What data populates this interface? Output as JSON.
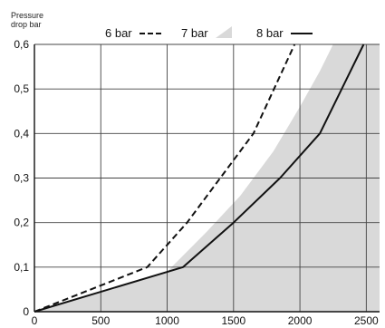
{
  "chart_data": {
    "type": "line",
    "title": "",
    "ylabel_lines": [
      "Pressure",
      "drop bar"
    ],
    "xlabel": "",
    "xlim": [
      0,
      2600
    ],
    "ylim": [
      0,
      0.6
    ],
    "x_ticks": [
      0,
      500,
      1000,
      1500,
      2000,
      2500
    ],
    "x_tick_labels": [
      "0",
      "500",
      "1000",
      "1500",
      "2000",
      "2500"
    ],
    "y_ticks": [
      0,
      0.1,
      0.2,
      0.3,
      0.4,
      0.5,
      0.6
    ],
    "y_tick_labels": [
      "0",
      "0,1",
      "0,2",
      "0,3",
      "0,4",
      "0,5",
      "0,6"
    ],
    "grid": true,
    "legend_position": "top",
    "series": [
      {
        "name": "6 bar",
        "style": "dashed",
        "color": "#111111",
        "x": [
          0,
          850,
          1150,
          1350,
          1650,
          1960
        ],
        "y": [
          0,
          0.1,
          0.2,
          0.28,
          0.4,
          0.6
        ]
      },
      {
        "name": "7 bar",
        "style": "area",
        "color": "#d9d9d9",
        "x": [
          0,
          1000,
          1300,
          1550,
          1800,
          2000,
          2150,
          2250
        ],
        "y": [
          0,
          0.09,
          0.18,
          0.26,
          0.36,
          0.46,
          0.54,
          0.6
        ]
      },
      {
        "name": "8 bar",
        "style": "solid",
        "color": "#111111",
        "x": [
          0,
          1120,
          1500,
          1850,
          2150,
          2480
        ],
        "y": [
          0,
          0.1,
          0.2,
          0.3,
          0.4,
          0.6
        ]
      }
    ]
  }
}
